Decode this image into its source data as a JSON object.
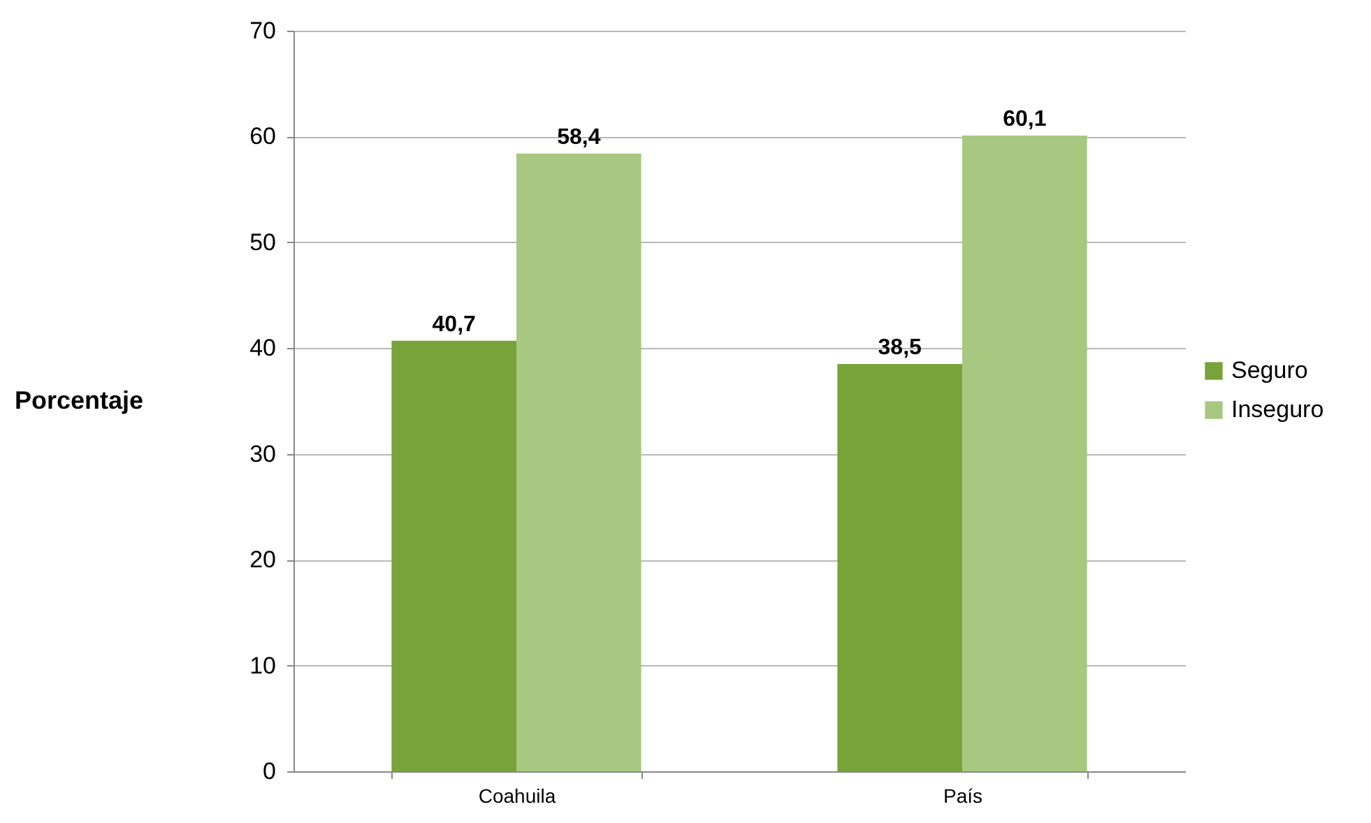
{
  "chart_data": {
    "type": "bar",
    "ylabel": "Porcentaje",
    "categories": [
      "Coahuila",
      "País"
    ],
    "series": [
      {
        "name": "Seguro",
        "color": "#78a23a",
        "values": [
          40.7,
          38.5
        ],
        "value_labels": [
          "40,7",
          "38,5"
        ]
      },
      {
        "name": "Inseguro",
        "color": "#a8c882",
        "values": [
          58.4,
          60.1
        ],
        "value_labels": [
          "58,4",
          "60,1"
        ]
      }
    ],
    "ylim": [
      0,
      70
    ],
    "yticks": [
      0,
      10,
      20,
      30,
      40,
      50,
      60,
      70
    ],
    "grid": "y",
    "legend": "right"
  }
}
